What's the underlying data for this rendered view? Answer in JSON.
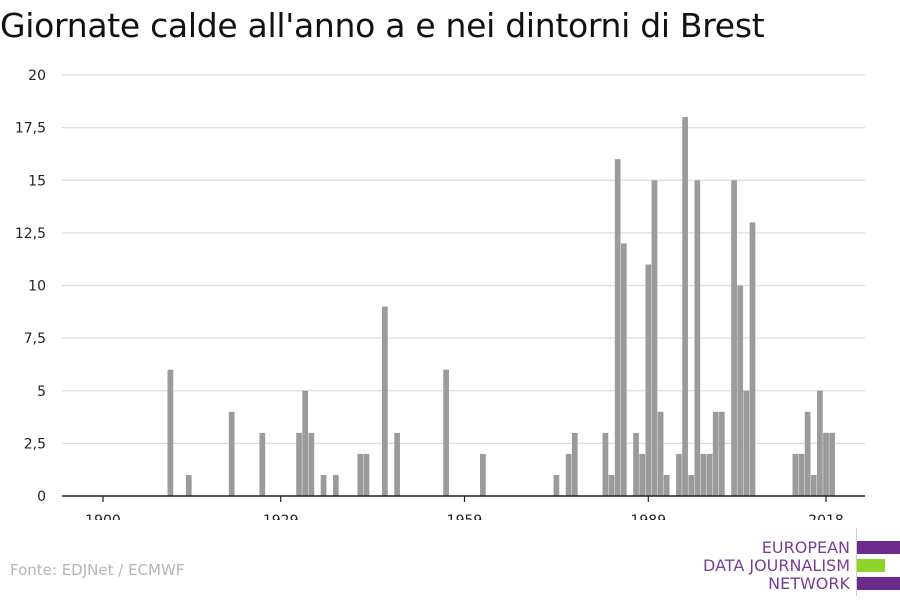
{
  "title": "Giornate calde all'anno a e nei dintorni di Brest",
  "source": "Fonte: EDJNet / ECMWF",
  "logo": {
    "lines": [
      "EUROPEAN",
      "DATA JOURNALISM",
      "NETWORK"
    ],
    "colors": {
      "purple": "#6b2a8c",
      "green": "#8fd42a",
      "text": "#7a3d96"
    }
  },
  "colors": {
    "bar": "#9b9b9b",
    "grid": "#dddddd",
    "axis": "#222222",
    "tick_text": "#222222"
  },
  "chart_data": {
    "type": "bar",
    "title": "Giornate calde all'anno a e nei dintorni di Brest",
    "xlabel": "",
    "ylabel": "",
    "x_tick_labels": [
      "1900",
      "1929",
      "1959",
      "1989",
      "2018"
    ],
    "y_tick_labels": [
      "0",
      "2,5",
      "5",
      "7,5",
      "10",
      "12,5",
      "15",
      "17,5",
      "20"
    ],
    "ylim": [
      0,
      20
    ],
    "xlim": [
      1900,
      2018
    ],
    "grid": true,
    "legend": "none",
    "x": [
      1911,
      1914,
      1921,
      1926,
      1932,
      1933,
      1934,
      1936,
      1938,
      1942,
      1943,
      1946,
      1948,
      1956,
      1962,
      1974,
      1976,
      1977,
      1982,
      1983,
      1984,
      1985,
      1987,
      1988,
      1989,
      1990,
      1991,
      1992,
      1994,
      1995,
      1996,
      1997,
      1998,
      1999,
      2000,
      2001,
      2003,
      2004,
      2005,
      2006,
      2013,
      2014,
      2015,
      2016,
      2017,
      2018,
      2019
    ],
    "values": [
      6,
      1,
      4,
      3,
      3,
      5,
      3,
      1,
      1,
      2,
      2,
      9,
      3,
      6,
      2,
      1,
      2,
      3,
      3,
      1,
      16,
      12,
      3,
      2,
      11,
      15,
      4,
      1,
      2,
      18,
      1,
      15,
      2,
      2,
      4,
      4,
      15,
      10,
      5,
      13,
      2,
      2,
      4,
      1,
      5,
      3,
      3
    ]
  }
}
